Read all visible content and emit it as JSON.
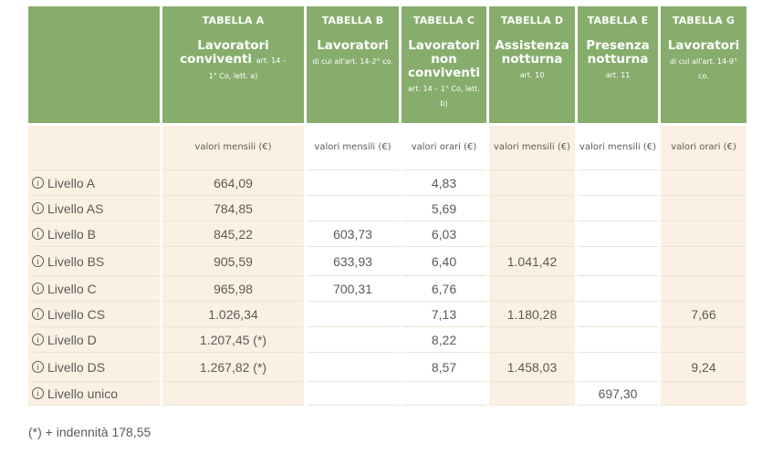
{
  "columns": [
    {
      "tab": "TABELLA A",
      "title": "Lavoratori conviventi",
      "title_note": "art. 14 –",
      "note": "1° Co, lett. a)",
      "unit": "valori mensili (€)"
    },
    {
      "tab": "TABELLA B",
      "title": "Lavoratori",
      "note": "di cui all'art. 14-2° co.",
      "unit": "valori mensili (€)"
    },
    {
      "tab": "TABELLA C",
      "title": "Lavoratori non conviventi",
      "note": "art. 14 – 1° Co, lett. b)",
      "unit": "valori orari (€)"
    },
    {
      "tab": "TABELLA D",
      "title": "Assistenza notturna",
      "note": "art. 10",
      "unit": "valori mensili (€)"
    },
    {
      "tab": "TABELLA E",
      "title": "Presenza notturna",
      "note": "art. 11",
      "unit": "valori mensili (€)"
    },
    {
      "tab": "TABELLA G",
      "title": "Lavoratori",
      "note": "di cui all'art. 14-9° co.",
      "unit": "valori orari (€)"
    }
  ],
  "rows": [
    {
      "label": "Livello A",
      "values": [
        "664,09",
        "",
        "4,83",
        "",
        "",
        ""
      ]
    },
    {
      "label": "Livello AS",
      "values": [
        "784,85",
        "",
        "5,69",
        "",
        "",
        ""
      ]
    },
    {
      "label": "Livello B",
      "values": [
        "845,22",
        "603,73",
        "6,03",
        "",
        "",
        ""
      ]
    },
    {
      "label": "Livello BS",
      "values": [
        "905,59",
        "633,93",
        "6,40",
        "1.041,42",
        "",
        ""
      ]
    },
    {
      "label": "Livello C",
      "values": [
        "965,98",
        "700,31",
        "6,76",
        "",
        "",
        ""
      ]
    },
    {
      "label": "Livello CS",
      "values": [
        "1.026,34",
        "",
        "7,13",
        "1.180,28",
        "",
        "7,66"
      ]
    },
    {
      "label": "Livello D",
      "values": [
        "1.207,45 (*)",
        "",
        "8,22",
        "",
        "",
        ""
      ]
    },
    {
      "label": "Livello DS",
      "values": [
        "1.267,82 (*)",
        "",
        "8,57",
        "1.458,03",
        "",
        "9,24"
      ]
    },
    {
      "label": "Livello unico",
      "values": [
        "",
        "",
        "",
        "",
        "697,30",
        ""
      ]
    }
  ],
  "info_glyph": "i",
  "footnote": "(*) + indennità 178,55",
  "colors": {
    "header_green": "#87ad6d",
    "beige": "#fbf1e3",
    "text": "#5a5a5a"
  }
}
